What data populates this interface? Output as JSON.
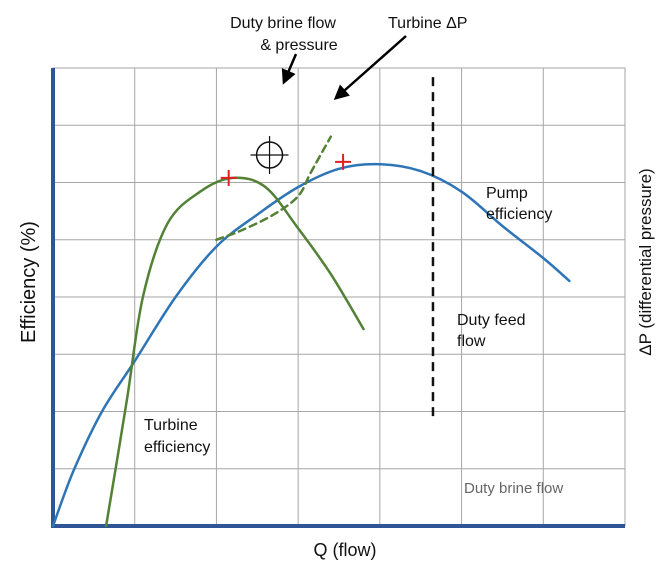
{
  "chart_data": {
    "type": "line",
    "xlabel": "Q (flow)",
    "ylabel_left": "Efficiency (%)",
    "ylabel_right": "ΔP (differential pressure)",
    "grid": true,
    "series": [
      {
        "name": "Pump efficiency",
        "style": "solid",
        "color": "#2e75b6",
        "points": [
          [
            0.0,
            0.0
          ],
          [
            0.25,
            0.12
          ],
          [
            0.6,
            0.25
          ],
          [
            1.0,
            0.36
          ],
          [
            1.5,
            0.5
          ],
          [
            2.0,
            0.61
          ],
          [
            2.5,
            0.68
          ],
          [
            3.0,
            0.74
          ],
          [
            3.5,
            0.78
          ],
          [
            4.0,
            0.79
          ],
          [
            4.5,
            0.775
          ],
          [
            5.0,
            0.73
          ],
          [
            5.5,
            0.655
          ],
          [
            6.0,
            0.585
          ],
          [
            6.32,
            0.535
          ]
        ]
      },
      {
        "name": "Turbine efficiency",
        "style": "solid",
        "color": "#538135",
        "points": [
          [
            0.65,
            0.0
          ],
          [
            0.9,
            0.27
          ],
          [
            1.1,
            0.5
          ],
          [
            1.4,
            0.66
          ],
          [
            1.8,
            0.73
          ],
          [
            2.2,
            0.76
          ],
          [
            2.6,
            0.74
          ],
          [
            3.0,
            0.65
          ],
          [
            3.4,
            0.55
          ],
          [
            3.8,
            0.43
          ]
        ]
      },
      {
        "name": "Turbine ΔP",
        "style": "dashed",
        "color": "#538135",
        "points": [
          [
            2.0,
            0.625
          ],
          [
            2.3,
            0.645
          ],
          [
            2.7,
            0.68
          ],
          [
            3.0,
            0.72
          ],
          [
            3.15,
            0.77
          ],
          [
            3.4,
            0.85
          ]
        ]
      }
    ],
    "vlines": [
      {
        "name": "Duty feed flow",
        "x": 4.65,
        "ymin": 0.24,
        "ymax": 0.98,
        "style": "dashed",
        "color": "#111111"
      }
    ],
    "best_efficiency_markers": [
      {
        "x": 2.15,
        "y": 0.76,
        "color": "#e02020"
      },
      {
        "x": 3.55,
        "y": 0.795,
        "color": "#e02020"
      }
    ],
    "duty_point": {
      "x": 2.65,
      "y": 0.81
    },
    "xlim": [
      0,
      7
    ],
    "ylim": [
      0,
      1.0
    ],
    "grid_x_lines": [
      1,
      2,
      3,
      4,
      5,
      6
    ],
    "grid_y_lines": [
      0.125,
      0.25,
      0.375,
      0.5,
      0.625,
      0.75,
      0.875,
      1.0
    ],
    "annotations": [
      {
        "id": "duty-brine-flow-pressure",
        "lines": [
          "Duty brine  flow",
          "& pressure"
        ]
      },
      {
        "id": "turbine-dp",
        "lines": [
          "Turbine ΔP"
        ]
      },
      {
        "id": "pump-efficiency",
        "lines": [
          "Pump",
          "efficiency"
        ]
      },
      {
        "id": "duty-feed-flow",
        "lines": [
          "Duty feed",
          "flow"
        ]
      },
      {
        "id": "turbine-efficiency",
        "lines": [
          "Turbine",
          "efficiency"
        ]
      },
      {
        "id": "duty-brine-flow",
        "lines": [
          "Duty brine  flow"
        ]
      }
    ]
  }
}
